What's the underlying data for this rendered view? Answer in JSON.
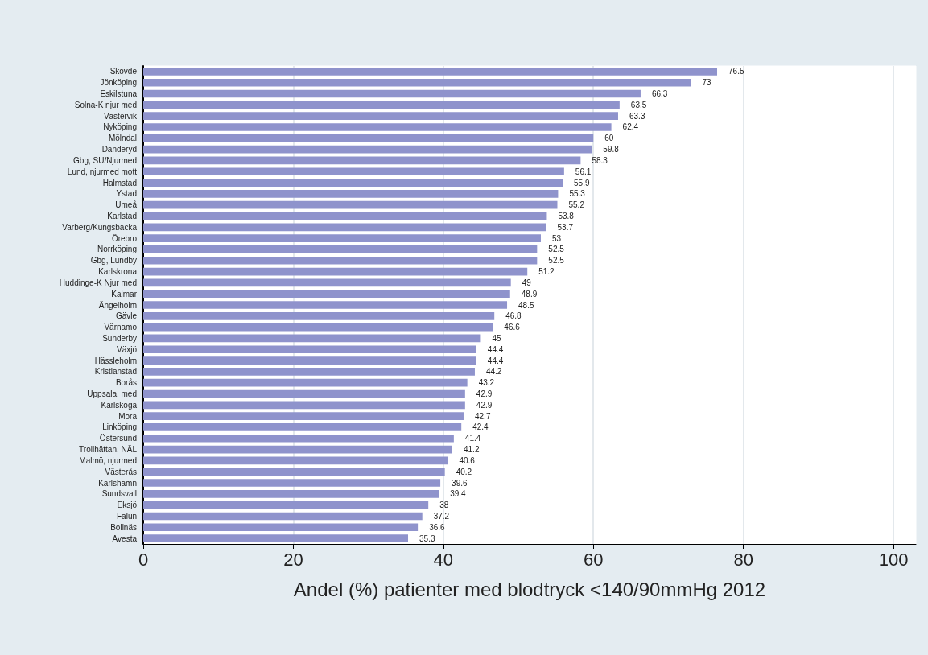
{
  "chart_data": {
    "type": "bar",
    "orientation": "horizontal",
    "xlabel": "Andel (%) patienter med blodtryck <140/90mmHg 2012",
    "categories": [
      "Skövde",
      "Jönköping",
      "Eskilstuna",
      "Solna-K njur med",
      "Västervik",
      "Nyköping",
      "Mölndal",
      "Danderyd",
      "Gbg, SU/Njurmed",
      "Lund, njurmed mott",
      "Halmstad",
      "Ystad",
      "Umeå",
      "Karlstad",
      "Varberg/Kungsbacka",
      "Örebro",
      "Norrköping",
      "Gbg, Lundby",
      "Karlskrona",
      "Huddinge-K Njur med",
      "Kalmar",
      "Ängelholm",
      "Gävle",
      "Värnamo",
      "Sunderby",
      "Växjö",
      "Hässleholm",
      "Kristianstad",
      "Borås",
      "Uppsala, med",
      "Karlskoga",
      "Mora",
      "Linköping",
      "Östersund",
      "Trollhättan, NÄL",
      "Malmö, njurmed",
      "Västerås",
      "Karlshamn",
      "Sundsvall",
      "Eksjö",
      "Falun",
      "Bollnäs",
      "Avesta"
    ],
    "values": [
      76.5,
      73,
      66.3,
      63.5,
      63.3,
      62.4,
      60,
      59.8,
      58.3,
      56.1,
      55.9,
      55.3,
      55.2,
      53.8,
      53.7,
      53,
      52.5,
      52.5,
      51.2,
      49,
      48.9,
      48.5,
      46.8,
      46.6,
      45,
      44.4,
      44.4,
      44.2,
      43.2,
      42.9,
      42.9,
      42.7,
      42.4,
      41.4,
      41.2,
      40.6,
      40.2,
      39.6,
      39.4,
      38,
      37.2,
      36.6,
      35.3
    ],
    "color": "#8f93cc",
    "data_labels": true,
    "xlim": [
      0,
      103
    ],
    "xticks": [
      0,
      20,
      40,
      60,
      80,
      100
    ],
    "grid": "x"
  }
}
